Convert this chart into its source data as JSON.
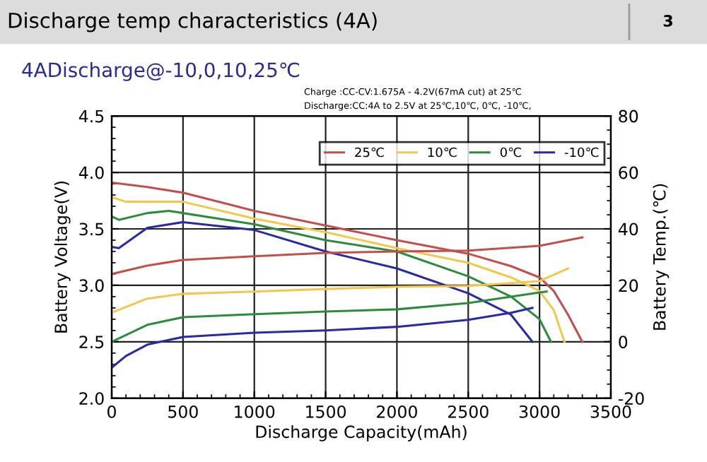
{
  "chart_data": {
    "type": "line",
    "title": "Discharge temp characteristics (4A)",
    "subtitle": "4ADischarge@-10,0,10,25℃",
    "xlabel": "Discharge Capacity(mAh)",
    "ylabel": "Battery Voltage(V)",
    "y2label": "Battery Temp.(℃)",
    "annotations": [
      "3",
      "Charge :CC-CV:1.675A - 4.2V(67mA cut) at 25℃",
      "Discharge:CC:4A to 2.5V at 25℃,10℃, 0℃, -10℃,"
    ],
    "xlim": [
      0,
      3500
    ],
    "xticks": [
      0,
      500,
      1000,
      1500,
      2000,
      2500,
      3000,
      3500
    ],
    "ylim": [
      2.0,
      4.5
    ],
    "yticks": [
      {
        "value": 2,
        "label": "2.0"
      },
      2.5,
      {
        "value": 3,
        "label": "3.0"
      },
      3.5,
      {
        "value": 4,
        "label": "4.0"
      },
      4.5
    ],
    "y2lim": [
      -20,
      80
    ],
    "y2ticks": [
      -20,
      0,
      20,
      40,
      60,
      80
    ],
    "grid": true,
    "legend": "top right",
    "line_style": "solid",
    "marker": "none",
    "series": [
      {
        "name": "25℃",
        "color": "#c0504d",
        "x": [
          0,
          250,
          500,
          1000,
          1500,
          2000,
          2500,
          2800,
          3000,
          3100,
          3200,
          3300
        ],
        "values": [
          3.91,
          3.87,
          3.82,
          3.66,
          3.53,
          3.4,
          3.28,
          3.17,
          3.07,
          2.95,
          2.74,
          2.5
        ]
      },
      {
        "name": "10℃",
        "color": "#f0c850",
        "x": [
          0,
          100,
          500,
          1000,
          1500,
          2000,
          2500,
          2800,
          3000,
          3100,
          3175
        ],
        "values": [
          3.78,
          3.74,
          3.74,
          3.59,
          3.47,
          3.33,
          3.2,
          3.07,
          2.95,
          2.78,
          2.5
        ]
      },
      {
        "name": "0℃",
        "color": "#2e8b3e",
        "x": [
          0,
          50,
          250,
          400,
          1000,
          1500,
          2000,
          2500,
          2800,
          3000,
          3080
        ],
        "values": [
          3.61,
          3.58,
          3.64,
          3.66,
          3.54,
          3.4,
          3.3,
          3.08,
          2.9,
          2.7,
          2.5
        ]
      },
      {
        "name": "-10℃",
        "color": "#2b2ba0",
        "x": [
          0,
          50,
          250,
          500,
          1000,
          1500,
          2000,
          2500,
          2800,
          2950
        ],
        "values": [
          3.34,
          3.33,
          3.51,
          3.56,
          3.49,
          3.3,
          3.15,
          2.93,
          2.74,
          2.5
        ]
      },
      {
        "color": "#c0504d",
        "axis": "y2",
        "x": [
          0,
          250,
          500,
          1000,
          1500,
          2000,
          2500,
          3000,
          3300
        ],
        "values": [
          24,
          27,
          29,
          30.3,
          31.5,
          32,
          32.3,
          34,
          37
        ]
      },
      {
        "color": "#f0c850",
        "axis": "y2",
        "x": [
          0,
          250,
          500,
          1000,
          1500,
          2000,
          2500,
          3000,
          3200
        ],
        "values": [
          10.3,
          15.3,
          17,
          17.8,
          18.7,
          19.5,
          19.8,
          21.5,
          26
        ]
      },
      {
        "color": "#2e8b3e",
        "axis": "y2",
        "x": [
          0,
          250,
          500,
          1000,
          1500,
          2000,
          2500,
          3000,
          3050
        ],
        "values": [
          0,
          6,
          8.7,
          9.8,
          10.7,
          11.5,
          13.7,
          17.5,
          17.8
        ]
      },
      {
        "color": "#2b2ba0",
        "axis": "y2",
        "x": [
          0,
          100,
          250,
          500,
          1000,
          1500,
          2000,
          2500,
          2800,
          2950
        ],
        "values": [
          -9.2,
          -5,
          -1,
          1.7,
          3.2,
          4,
          5.3,
          7.8,
          10.3,
          12
        ]
      }
    ]
  }
}
